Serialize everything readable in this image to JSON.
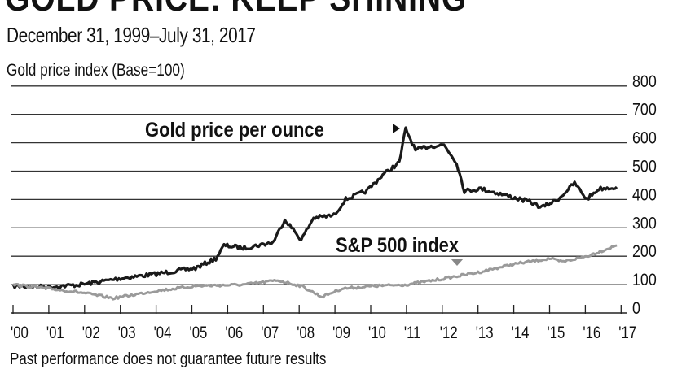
{
  "chart_data": {
    "type": "line",
    "title": "GOLD PRICE: KEEP SHINING",
    "subtitle": "December 31, 1999–July 31, 2017",
    "ylabel": "Gold price index (Base=100)",
    "xlabel": "",
    "ylim": [
      0,
      800
    ],
    "yticks": [
      "800",
      "700",
      "600",
      "500",
      "400",
      "300",
      "200",
      "100",
      "0"
    ],
    "ytick_values": [
      800,
      700,
      600,
      500,
      400,
      300,
      200,
      100,
      0
    ],
    "xlim": [
      2000,
      2017.4
    ],
    "xticks": [
      "'00",
      "'01",
      "'02",
      "'03",
      "'04",
      "'05",
      "'06",
      "'07",
      "'08",
      "'09",
      "'10",
      "'11",
      "'12",
      "'13",
      "'14",
      "'15",
      "'16",
      "'17"
    ],
    "xtick_values": [
      2000,
      2001,
      2002,
      2003,
      2004,
      2005,
      2006,
      2007,
      2008,
      2009,
      2010,
      2011,
      2012,
      2013,
      2014,
      2015,
      2016,
      2017
    ],
    "grid": true,
    "axis_side": "right",
    "series": [
      {
        "name": "Gold price per ounce",
        "color": "#1a1a1a",
        "x": [
          2000,
          2001,
          2001.9,
          2003.05,
          2003.96,
          2005.1,
          2005.67,
          2005.9,
          2006.47,
          2007.27,
          2007.6,
          2008.06,
          2008.4,
          2008.97,
          2009.3,
          2009.89,
          2010.34,
          2010.8,
          2010.98,
          2011.25,
          2011.6,
          2012.05,
          2012.4,
          2012.62,
          2013.08,
          2013.76,
          2014.44,
          2014.78,
          2015.24,
          2015.7,
          2016.04,
          2016.38,
          2016.88
        ],
        "y": [
          95,
          92,
          100,
          123,
          137,
          158,
          192,
          238,
          229,
          249,
          330,
          258,
          335,
          344,
          401,
          430,
          487,
          530,
          650,
          573,
          587,
          593,
          530,
          430,
          438,
          415,
          392,
          372,
          401,
          458,
          401,
          438,
          444
        ]
      },
      {
        "name": "S&P 500 index",
        "color": "#9a9a9a",
        "x": [
          2000,
          2001,
          2001.9,
          2002.8,
          2003.96,
          2005.1,
          2006.47,
          2007.4,
          2008.06,
          2008.63,
          2009.2,
          2010.1,
          2011,
          2012,
          2013,
          2014,
          2015,
          2015.35,
          2016.04,
          2016.88
        ],
        "y": [
          100,
          86,
          72,
          52,
          77,
          95,
          100,
          115,
          95,
          57,
          86,
          95,
          100,
          120,
          143,
          172,
          192,
          180,
          200,
          238
        ]
      }
    ],
    "annotations": [
      {
        "text": "Gold price per ounce",
        "marker": "right-pointing-triangle"
      },
      {
        "text": "S&P 500 index",
        "marker": "down-pointing-triangle"
      }
    ],
    "footnote": "Past performance does not guarantee future results"
  }
}
